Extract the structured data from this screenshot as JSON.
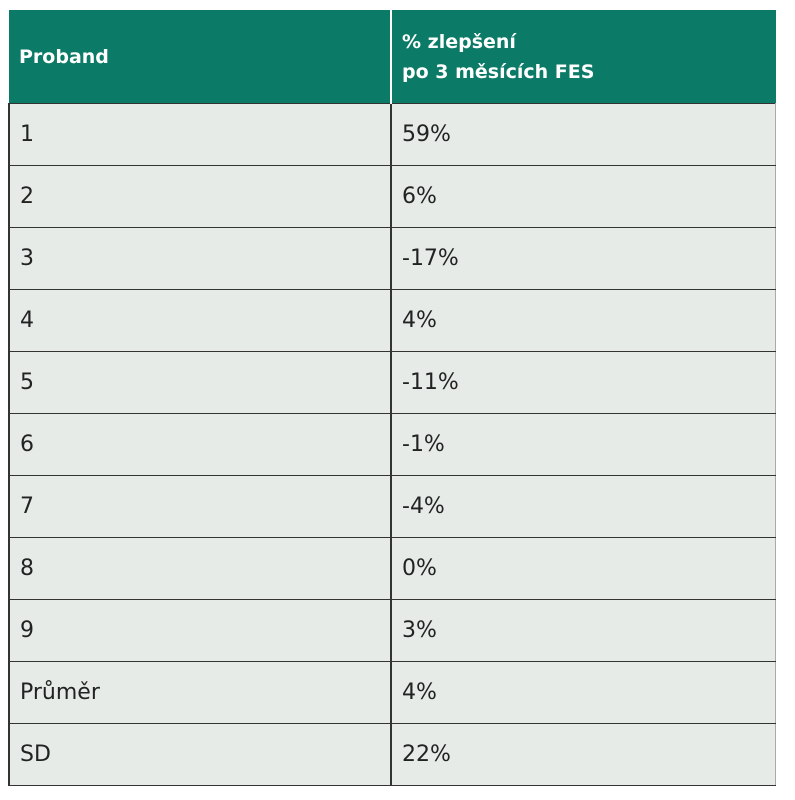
{
  "table": {
    "header": [
      "Proband",
      [
        "% zlepšení",
        "po 3 měsících FES"
      ]
    ],
    "rows": [
      [
        "1",
        "59%"
      ],
      [
        "2",
        "6%"
      ],
      [
        "3",
        "-17%"
      ],
      [
        "4",
        "4%"
      ],
      [
        "5",
        "-11%"
      ],
      [
        "6",
        "-1%"
      ],
      [
        "7",
        "-4%"
      ],
      [
        "8",
        "0%"
      ],
      [
        "9",
        "3%"
      ],
      [
        "Průměr",
        "4%"
      ],
      [
        "SD",
        "22%"
      ]
    ]
  }
}
